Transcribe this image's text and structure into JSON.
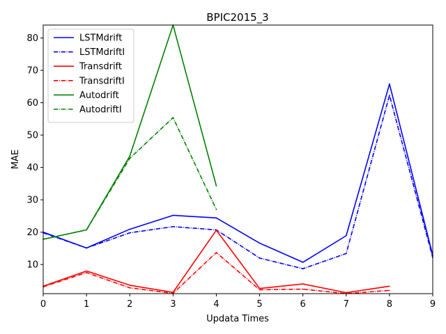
{
  "chart_data": {
    "type": "line",
    "title": "BPIC2015_3",
    "xlabel": "Updata Times",
    "ylabel": "MAE",
    "xlim": [
      0,
      9
    ],
    "ylim": [
      1,
      84
    ],
    "xticks": [
      0,
      1,
      2,
      3,
      4,
      5,
      6,
      7,
      8,
      9
    ],
    "yticks": [
      10,
      20,
      30,
      40,
      50,
      60,
      70,
      80
    ],
    "grid": false,
    "legend_position": "top-left",
    "series": [
      {
        "name": "LSTMdrift",
        "color": "#0000ff",
        "dash": "solid",
        "x": [
          0,
          1,
          2,
          3,
          4,
          5,
          6,
          7,
          8,
          9
        ],
        "y": [
          20.0,
          15.1,
          20.9,
          25.2,
          24.4,
          16.6,
          10.7,
          18.9,
          65.8,
          12.8
        ]
      },
      {
        "name": "LSTMdriftI",
        "color": "#0000ff",
        "dash": "dashdot",
        "x": [
          0,
          1,
          2,
          3,
          4,
          5,
          6,
          7,
          8,
          9
        ],
        "y": [
          19.8,
          15.1,
          19.8,
          21.7,
          20.7,
          12.0,
          8.7,
          13.4,
          62.3,
          12.1
        ]
      },
      {
        "name": "Transdrift",
        "color": "#ff0000",
        "dash": "solid",
        "x": [
          0,
          1,
          2,
          3,
          4,
          5,
          6,
          7,
          8
        ],
        "y": [
          3.3,
          8.0,
          3.6,
          1.4,
          20.6,
          2.6,
          4.0,
          1.3,
          3.3
        ]
      },
      {
        "name": "TransdriftI",
        "color": "#ff0000",
        "dash": "dashdot",
        "x": [
          0,
          1,
          2,
          3,
          4,
          5,
          6,
          7,
          8
        ],
        "y": [
          3.1,
          7.5,
          2.8,
          1.1,
          13.7,
          2.2,
          2.4,
          1.0,
          2.0
        ]
      },
      {
        "name": "Autodrift",
        "color": "#008000",
        "dash": "solid",
        "x": [
          0,
          1,
          2,
          3,
          4
        ],
        "y": [
          17.8,
          20.7,
          43.5,
          84.0,
          34.3
        ]
      },
      {
        "name": "AutodriftI",
        "color": "#008000",
        "dash": "dashdot",
        "x": [
          0,
          1,
          2,
          3,
          4
        ],
        "y": [
          17.8,
          20.7,
          42.8,
          55.4,
          27.0
        ]
      }
    ]
  }
}
